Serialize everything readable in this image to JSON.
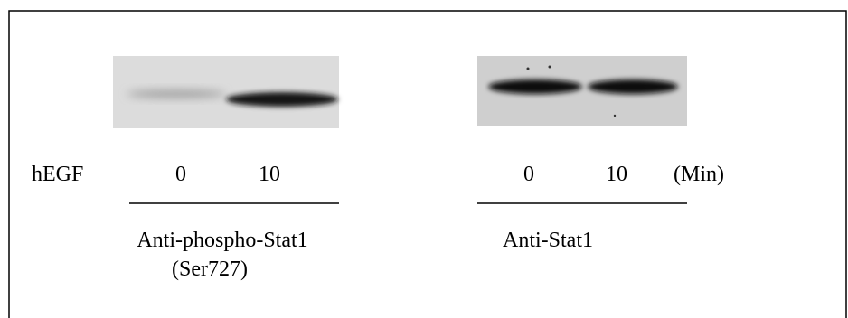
{
  "figure": {
    "treatment": "hEGF",
    "lanes": [
      "0",
      "10",
      "0",
      "10"
    ],
    "unit": "(Min)",
    "panels": [
      {
        "antibody": "Anti-phospho-Stat1",
        "site": "(Ser727)"
      },
      {
        "antibody": "Anti-Stat1"
      }
    ]
  }
}
